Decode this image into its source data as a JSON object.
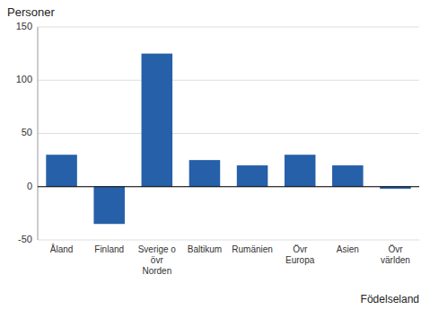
{
  "chart_data": {
    "type": "bar",
    "ylabel": "Personer",
    "xlabel": "Födelseland",
    "categories": [
      "Åland",
      "Finland",
      "Sverige o\növr\nNorden",
      "Baltikum",
      "Rumänien",
      "Övr\nEuropa",
      "Asien",
      "Övr\nvärlden"
    ],
    "values": [
      30,
      -35,
      125,
      25,
      20,
      30,
      20,
      -2
    ],
    "color": "#2660a8",
    "ylim": [
      -50,
      150
    ],
    "yticks": [
      -50,
      0,
      50,
      100,
      150
    ],
    "grid": true
  }
}
